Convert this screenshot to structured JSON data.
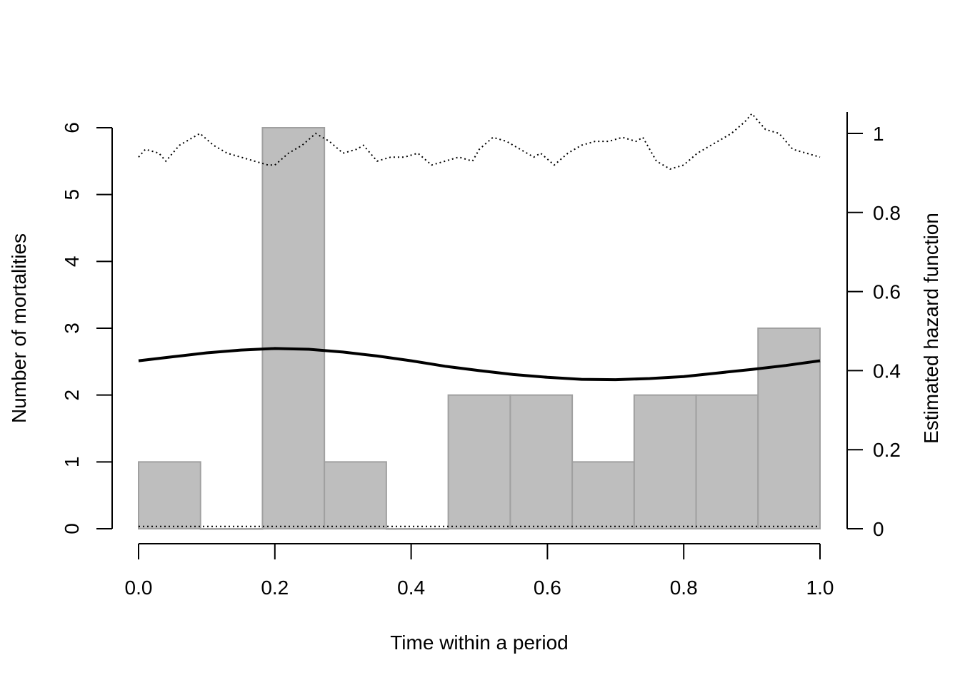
{
  "chart_data": {
    "type": "bar",
    "xlabel": "Time within a period",
    "ylabel": "Number of mortalities",
    "y2label": "Estimated hazard function",
    "xlim": [
      0,
      1
    ],
    "ylim": [
      0,
      6
    ],
    "y2lim": [
      0,
      1
    ],
    "x_ticks": [
      "0.0",
      "0.2",
      "0.4",
      "0.6",
      "0.8",
      "1.0"
    ],
    "y_ticks": [
      "0",
      "1",
      "2",
      "3",
      "4",
      "5",
      "6"
    ],
    "y2_ticks": [
      "0",
      "0.2",
      "0.4",
      "0.6",
      "0.8",
      "1"
    ],
    "histogram": {
      "bin_edges": [
        0,
        0.0909,
        0.1818,
        0.2727,
        0.3636,
        0.4545,
        0.5455,
        0.6364,
        0.7273,
        0.8182,
        0.9091,
        1.0
      ],
      "counts": [
        1,
        0,
        6,
        1,
        0,
        2,
        2,
        1,
        2,
        2,
        3
      ],
      "fill": "#bebebe",
      "stroke": "#a0a0a0"
    },
    "hazard_estimate": {
      "x": [
        0,
        0.05,
        0.1,
        0.15,
        0.2,
        0.25,
        0.3,
        0.35,
        0.4,
        0.45,
        0.5,
        0.55,
        0.6,
        0.65,
        0.7,
        0.75,
        0.8,
        0.85,
        0.9,
        0.95,
        1.0
      ],
      "y": [
        0.425,
        0.435,
        0.445,
        0.452,
        0.456,
        0.454,
        0.447,
        0.437,
        0.425,
        0.411,
        0.4,
        0.39,
        0.383,
        0.378,
        0.377,
        0.38,
        0.385,
        0.394,
        0.403,
        0.413,
        0.425
      ],
      "line": "solid"
    },
    "upper_band": {
      "x": [
        0,
        0.01,
        0.03,
        0.04,
        0.06,
        0.08,
        0.09,
        0.11,
        0.13,
        0.15,
        0.17,
        0.19,
        0.2,
        0.22,
        0.24,
        0.26,
        0.28,
        0.3,
        0.32,
        0.33,
        0.35,
        0.37,
        0.39,
        0.41,
        0.43,
        0.45,
        0.47,
        0.49,
        0.5,
        0.52,
        0.54,
        0.56,
        0.58,
        0.59,
        0.61,
        0.63,
        0.65,
        0.67,
        0.69,
        0.71,
        0.73,
        0.74,
        0.76,
        0.78,
        0.8,
        0.82,
        0.84,
        0.85,
        0.87,
        0.89,
        0.9,
        0.92,
        0.94,
        0.96,
        0.98,
        1.0
      ],
      "y": [
        0.94,
        0.96,
        0.95,
        0.93,
        0.97,
        0.99,
        1.0,
        0.97,
        0.95,
        0.94,
        0.93,
        0.92,
        0.92,
        0.95,
        0.97,
        1.0,
        0.98,
        0.95,
        0.96,
        0.97,
        0.93,
        0.94,
        0.94,
        0.95,
        0.92,
        0.93,
        0.94,
        0.93,
        0.96,
        0.99,
        0.98,
        0.96,
        0.94,
        0.95,
        0.92,
        0.95,
        0.97,
        0.98,
        0.98,
        0.99,
        0.98,
        0.99,
        0.93,
        0.91,
        0.92,
        0.95,
        0.97,
        0.98,
        1.0,
        1.03,
        1.05,
        1.01,
        1.0,
        0.96,
        0.95,
        0.94
      ],
      "line": "dotted"
    },
    "lower_band": {
      "x": [
        0,
        1.0
      ],
      "y": [
        0.006,
        0.006
      ],
      "line": "dotted"
    }
  }
}
